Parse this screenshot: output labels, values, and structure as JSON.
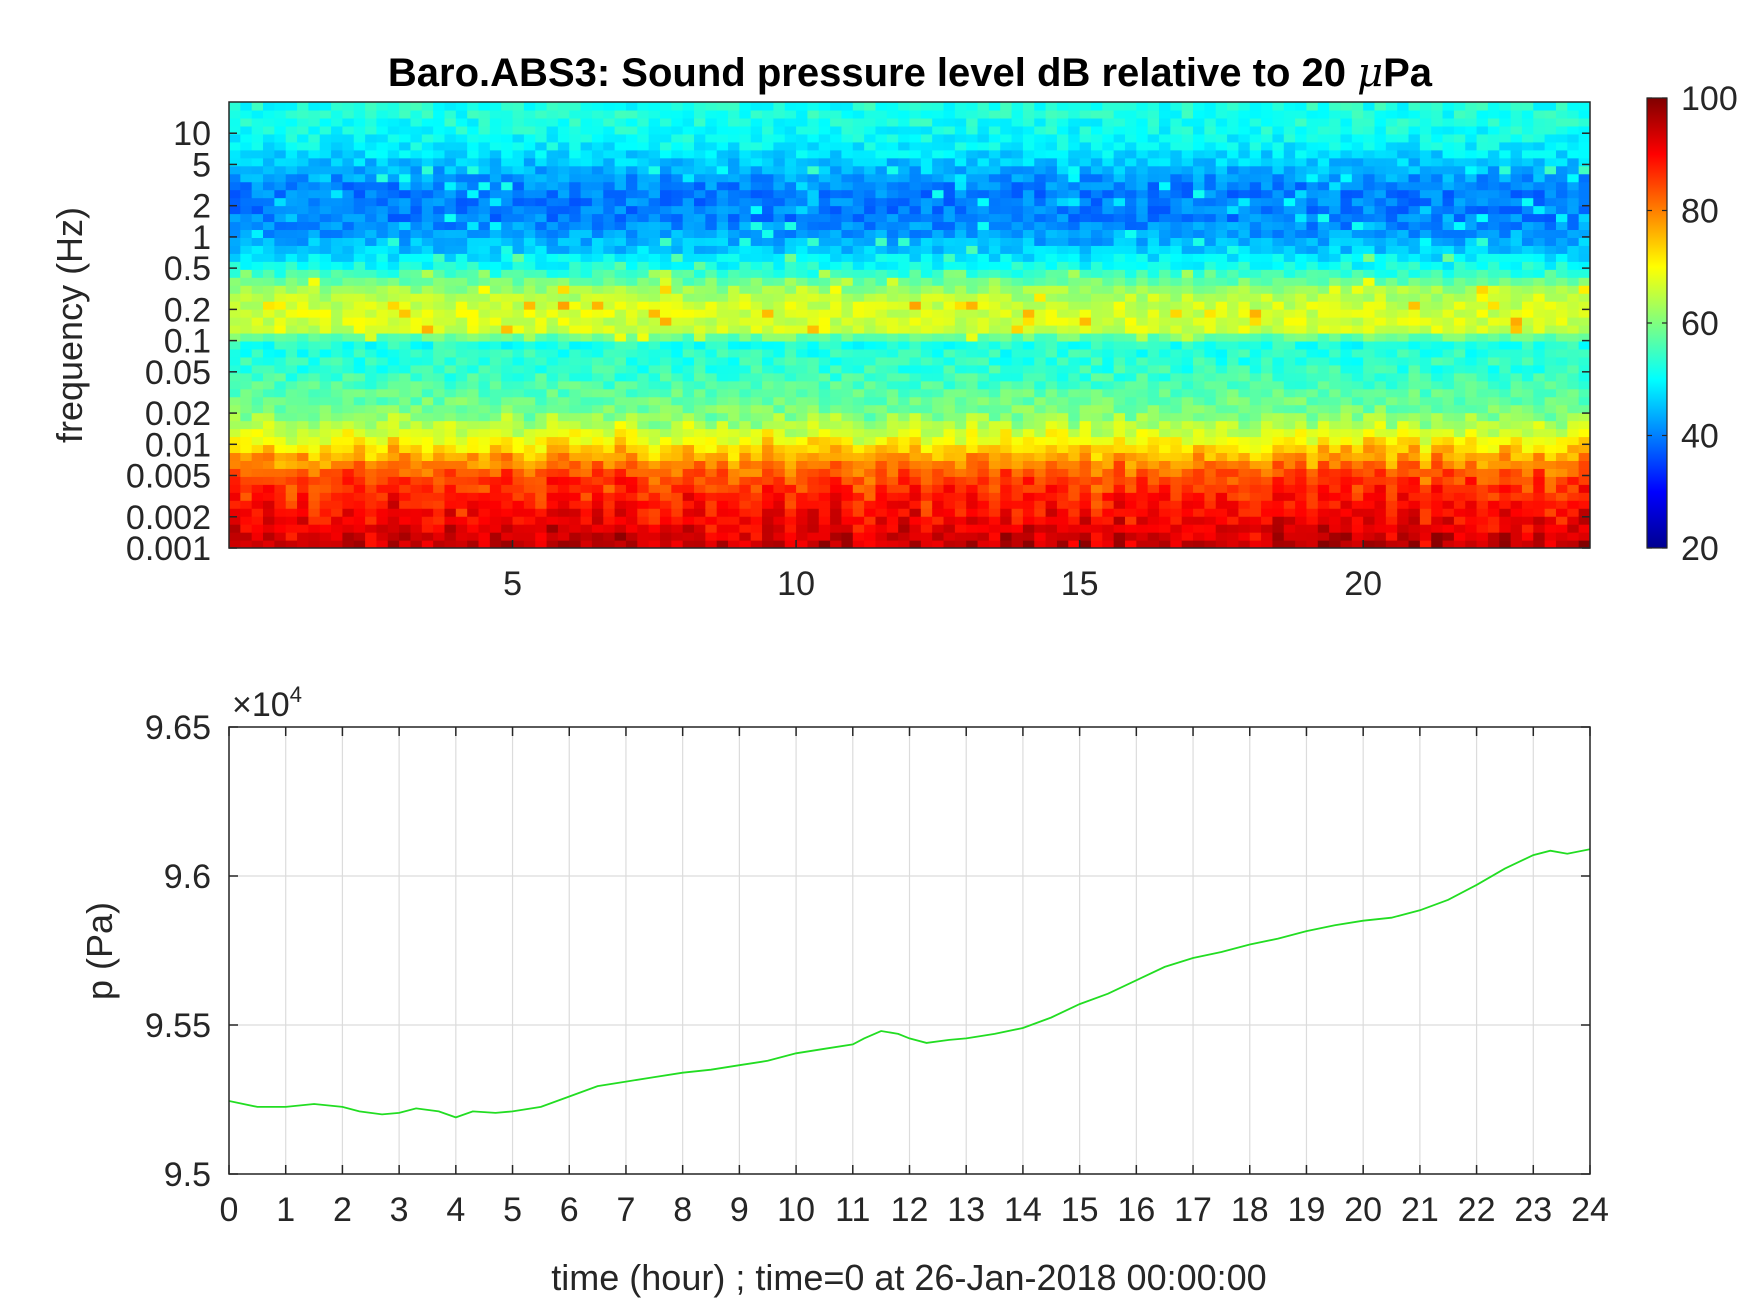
{
  "chart_data": [
    {
      "type": "heatmap",
      "title": "Baro.ABS3: Sound pressure level dB relative to 20 μPa",
      "title_prefix": "Baro.ABS3: Sound pressure level dB relative to 20 ",
      "title_mu": "μ",
      "title_suffix": "Pa",
      "ylabel": "frequency (Hz)",
      "y_scale": "log",
      "ylim": [
        0.001,
        20
      ],
      "xlim": [
        0,
        24
      ],
      "yticks": [
        {
          "v": 0.001,
          "label": "0.001"
        },
        {
          "v": 0.002,
          "label": "0.002"
        },
        {
          "v": 0.005,
          "label": "0.005"
        },
        {
          "v": 0.01,
          "label": "0.01"
        },
        {
          "v": 0.02,
          "label": "0.02"
        },
        {
          "v": 0.05,
          "label": "0.05"
        },
        {
          "v": 0.1,
          "label": "0.1"
        },
        {
          "v": 0.2,
          "label": "0.2"
        },
        {
          "v": 0.5,
          "label": "0.5"
        },
        {
          "v": 1,
          "label": "1"
        },
        {
          "v": 2,
          "label": "2"
        },
        {
          "v": 5,
          "label": "5"
        },
        {
          "v": 10,
          "label": "10"
        }
      ],
      "xticks": [
        {
          "v": 5,
          "label": "5"
        },
        {
          "v": 10,
          "label": "10"
        },
        {
          "v": 15,
          "label": "15"
        },
        {
          "v": 20,
          "label": "20"
        }
      ],
      "colormap": "jet",
      "colorbar": {
        "range": [
          20,
          100
        ],
        "ticks": [
          {
            "v": 20,
            "label": "20"
          },
          {
            "v": 40,
            "label": "40"
          },
          {
            "v": 60,
            "label": "60"
          },
          {
            "v": 80,
            "label": "80"
          },
          {
            "v": 100,
            "label": "100"
          }
        ]
      },
      "levels_by_frequency_db": [
        {
          "f": 0.001,
          "db": 95
        },
        {
          "f": 0.0015,
          "db": 92
        },
        {
          "f": 0.002,
          "db": 90
        },
        {
          "f": 0.003,
          "db": 88
        },
        {
          "f": 0.005,
          "db": 84
        },
        {
          "f": 0.008,
          "db": 76
        },
        {
          "f": 0.012,
          "db": 68
        },
        {
          "f": 0.02,
          "db": 60
        },
        {
          "f": 0.05,
          "db": 54
        },
        {
          "f": 0.1,
          "db": 52
        },
        {
          "f": 0.12,
          "db": 66
        },
        {
          "f": 0.2,
          "db": 67
        },
        {
          "f": 0.3,
          "db": 63
        },
        {
          "f": 0.5,
          "db": 52
        },
        {
          "f": 0.8,
          "db": 45
        },
        {
          "f": 1.5,
          "db": 40
        },
        {
          "f": 3,
          "db": 40
        },
        {
          "f": 5,
          "db": 45
        },
        {
          "f": 8,
          "db": 50
        },
        {
          "f": 15,
          "db": 52
        }
      ]
    },
    {
      "type": "line",
      "xlabel": "time (hour) ; time=0 at 26-Jan-2018 00:00:00",
      "ylabel": "p (Pa)",
      "y_multiplier": "×10",
      "y_multiplier_exp": "4",
      "xlim": [
        0,
        24
      ],
      "ylim": [
        9.5,
        9.65
      ],
      "grid": true,
      "xticks": [
        "0",
        "1",
        "2",
        "3",
        "4",
        "5",
        "6",
        "7",
        "8",
        "9",
        "10",
        "11",
        "12",
        "13",
        "14",
        "15",
        "16",
        "17",
        "18",
        "19",
        "20",
        "21",
        "22",
        "23",
        "24"
      ],
      "yticks": [
        {
          "v": 9.5,
          "label": "9.5"
        },
        {
          "v": 9.55,
          "label": "9.55"
        },
        {
          "v": 9.6,
          "label": "9.6"
        },
        {
          "v": 9.65,
          "label": "9.65"
        }
      ],
      "line_color": "#22dd22",
      "series": [
        {
          "x": [
            0,
            0.5,
            1,
            1.5,
            2,
            2.3,
            2.7,
            3,
            3.3,
            3.7,
            4,
            4.3,
            4.7,
            5,
            5.5,
            6,
            6.5,
            7,
            7.5,
            8,
            8.5,
            9,
            9.5,
            10,
            10.5,
            11,
            11.2,
            11.5,
            11.8,
            12,
            12.3,
            12.7,
            13,
            13.5,
            14,
            14.5,
            15,
            15.5,
            16,
            16.5,
            17,
            17.5,
            18,
            18.5,
            19,
            19.5,
            20,
            20.5,
            21,
            21.5,
            22,
            22.5,
            23,
            23.3,
            23.6,
            24
          ],
          "y": [
            9.5245,
            9.5225,
            9.5225,
            9.5235,
            9.5225,
            9.521,
            9.52,
            9.5205,
            9.522,
            9.521,
            9.519,
            9.521,
            9.5205,
            9.521,
            9.5225,
            9.526,
            9.5295,
            9.531,
            9.5325,
            9.534,
            9.535,
            9.5365,
            9.538,
            9.5405,
            9.542,
            9.5435,
            9.5455,
            9.548,
            9.547,
            9.5455,
            9.544,
            9.545,
            9.5455,
            9.547,
            9.549,
            9.5525,
            9.557,
            9.5605,
            9.565,
            9.5695,
            9.5725,
            9.5745,
            9.577,
            9.579,
            9.5815,
            9.5835,
            9.585,
            9.586,
            9.5885,
            9.592,
            9.597,
            9.6025,
            9.607,
            9.6085,
            9.6075,
            9.609
          ]
        }
      ]
    }
  ]
}
